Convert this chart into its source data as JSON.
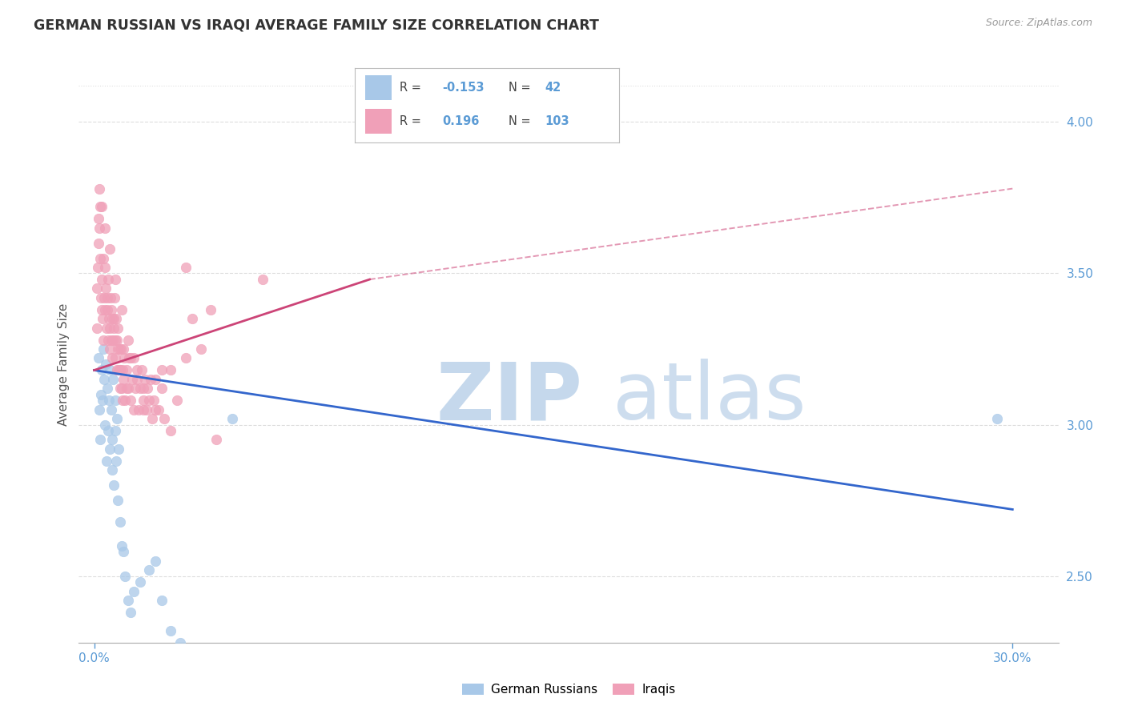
{
  "title": "GERMAN RUSSIAN VS IRAQI AVERAGE FAMILY SIZE CORRELATION CHART",
  "source": "Source: ZipAtlas.com",
  "ylabel": "Average Family Size",
  "xlabel_ticks": [
    "0.0%",
    "30.0%"
  ],
  "xlabel_vals": [
    0.0,
    30.0
  ],
  "ylim": [
    2.28,
    4.12
  ],
  "xlim": [
    -0.5,
    31.5
  ],
  "yticks": [
    2.5,
    3.0,
    3.5,
    4.0
  ],
  "blue_color": "#a8c8e8",
  "pink_color": "#f0a0b8",
  "blue_line_color": "#3366cc",
  "pink_line_color": "#cc4477",
  "title_color": "#333333",
  "axis_color": "#5b9bd5",
  "grid_color": "#dddddd",
  "watermark_zip_color": "#c5d8ec",
  "watermark_atlas_color": "#c5d8ec",
  "blue_reg_x0": 0.0,
  "blue_reg_x1": 30.0,
  "blue_reg_y0": 3.18,
  "blue_reg_y1": 2.72,
  "pink_solid_x0": 0.0,
  "pink_solid_x1": 9.0,
  "pink_solid_y0": 3.18,
  "pink_solid_y1": 3.48,
  "pink_dash_x0": 9.0,
  "pink_dash_x1": 30.0,
  "pink_dash_y0": 3.48,
  "pink_dash_y1": 3.78,
  "blue_pts_x": [
    0.15,
    0.18,
    0.2,
    0.22,
    0.25,
    0.28,
    0.3,
    0.32,
    0.35,
    0.38,
    0.4,
    0.42,
    0.45,
    0.48,
    0.5,
    0.52,
    0.55,
    0.58,
    0.6,
    0.62,
    0.65,
    0.68,
    0.7,
    0.72,
    0.75,
    0.78,
    0.8,
    0.85,
    0.9,
    0.95,
    1.0,
    1.1,
    1.2,
    1.3,
    1.5,
    1.8,
    2.0,
    2.2,
    2.5,
    2.8,
    4.5,
    29.5
  ],
  "blue_pts_y": [
    3.22,
    3.05,
    2.95,
    3.1,
    3.18,
    3.08,
    3.25,
    3.15,
    3.0,
    3.2,
    2.88,
    3.12,
    2.98,
    3.08,
    2.92,
    3.18,
    3.05,
    2.85,
    2.95,
    3.15,
    2.8,
    2.98,
    3.08,
    2.88,
    3.02,
    2.75,
    2.92,
    2.68,
    2.6,
    2.58,
    2.5,
    2.42,
    2.38,
    2.45,
    2.48,
    2.52,
    2.55,
    2.42,
    2.32,
    2.28,
    3.02,
    3.02
  ],
  "pink_pts_x": [
    0.08,
    0.1,
    0.12,
    0.14,
    0.16,
    0.18,
    0.2,
    0.22,
    0.24,
    0.26,
    0.28,
    0.3,
    0.32,
    0.34,
    0.36,
    0.38,
    0.4,
    0.42,
    0.44,
    0.46,
    0.48,
    0.5,
    0.52,
    0.54,
    0.56,
    0.58,
    0.6,
    0.62,
    0.64,
    0.66,
    0.68,
    0.7,
    0.72,
    0.74,
    0.76,
    0.78,
    0.8,
    0.82,
    0.84,
    0.86,
    0.88,
    0.9,
    0.92,
    0.94,
    0.96,
    0.98,
    1.0,
    1.05,
    1.1,
    1.15,
    1.2,
    1.25,
    1.3,
    1.35,
    1.4,
    1.45,
    1.5,
    1.55,
    1.6,
    1.65,
    1.7,
    1.75,
    1.8,
    1.85,
    1.9,
    1.95,
    2.0,
    2.1,
    2.2,
    2.3,
    2.5,
    2.7,
    3.0,
    3.5,
    4.0,
    0.15,
    0.2,
    0.3,
    0.45,
    0.55,
    0.65,
    0.75,
    0.85,
    0.95,
    1.05,
    1.2,
    1.4,
    1.6,
    2.2,
    3.2,
    0.25,
    0.35,
    0.5,
    0.7,
    0.9,
    1.1,
    1.3,
    1.6,
    2.0,
    2.5,
    3.0,
    3.8,
    5.5
  ],
  "pink_pts_y": [
    3.32,
    3.45,
    3.52,
    3.68,
    3.78,
    3.65,
    3.55,
    3.42,
    3.38,
    3.48,
    3.35,
    3.28,
    3.42,
    3.52,
    3.38,
    3.45,
    3.32,
    3.42,
    3.38,
    3.28,
    3.35,
    3.25,
    3.32,
    3.42,
    3.28,
    3.35,
    3.22,
    3.28,
    3.35,
    3.42,
    3.22,
    3.28,
    3.35,
    3.18,
    3.25,
    3.32,
    3.18,
    3.25,
    3.12,
    3.18,
    3.25,
    3.12,
    3.18,
    3.08,
    3.15,
    3.22,
    3.08,
    3.18,
    3.12,
    3.22,
    3.08,
    3.15,
    3.05,
    3.12,
    3.18,
    3.05,
    3.12,
    3.18,
    3.08,
    3.15,
    3.05,
    3.12,
    3.08,
    3.15,
    3.02,
    3.08,
    3.15,
    3.05,
    3.12,
    3.02,
    3.18,
    3.08,
    3.22,
    3.25,
    2.95,
    3.6,
    3.72,
    3.55,
    3.48,
    3.38,
    3.32,
    3.28,
    3.18,
    3.25,
    3.12,
    3.22,
    3.15,
    3.05,
    3.18,
    3.35,
    3.72,
    3.65,
    3.58,
    3.48,
    3.38,
    3.28,
    3.22,
    3.12,
    3.05,
    2.98,
    3.52,
    3.38,
    3.48
  ]
}
